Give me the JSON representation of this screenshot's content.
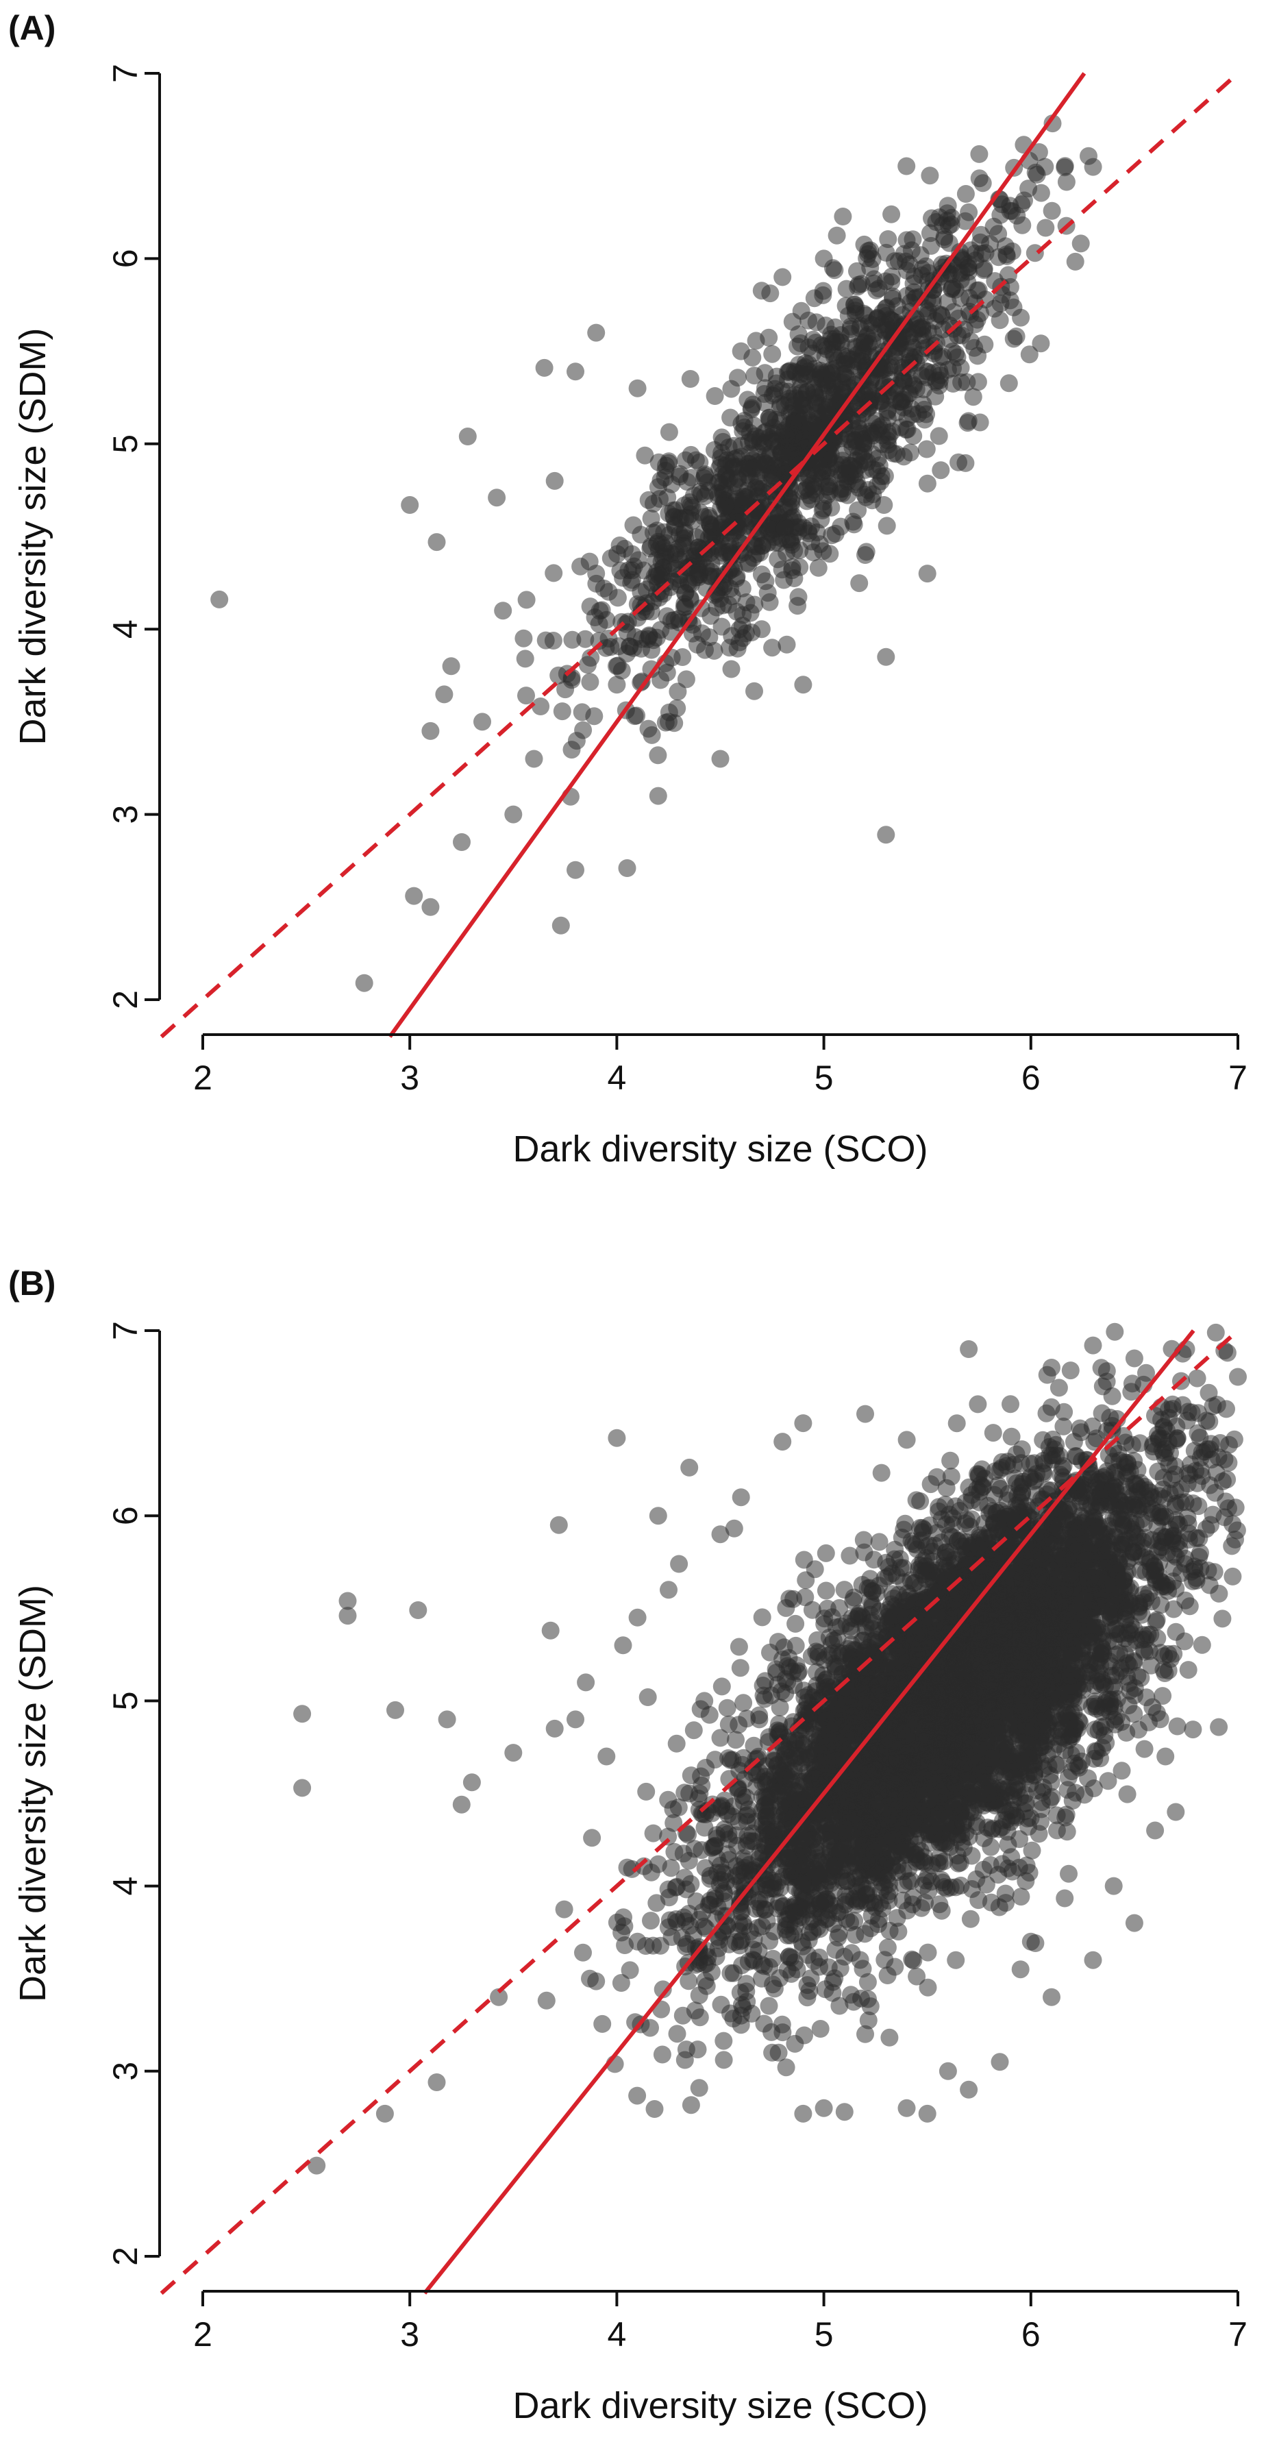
{
  "chart_data": [
    {
      "type": "scatter",
      "panel_label": "(A)",
      "xlabel": "Dark diversity size (SCO)",
      "ylabel": "Dark diversity size (SDM)",
      "xlim": [
        1.8,
        7.0
      ],
      "ylim": [
        1.8,
        7.0
      ],
      "xticks": [
        2,
        3,
        4,
        5,
        6,
        7
      ],
      "yticks": [
        2,
        3,
        4,
        5,
        6,
        7
      ],
      "point_color": "#2a2a2a",
      "line_color": "#d7222b",
      "lines": [
        {
          "style": "solid",
          "slope": 1.55,
          "intercept": -2.7
        },
        {
          "style": "dashed",
          "slope": 1.0,
          "intercept": 0.0
        }
      ],
      "cloud": {
        "n": 1500,
        "x_mean": 4.9,
        "x_sd": 0.5,
        "y_slope": 1.05,
        "y_intercept": -0.15,
        "y_sd": 0.33,
        "seed": 11
      },
      "points": [
        [
          2.08,
          4.16
        ],
        [
          2.78,
          2.09
        ],
        [
          3.0,
          4.67
        ],
        [
          3.02,
          2.56
        ],
        [
          3.1,
          2.5
        ],
        [
          3.13,
          4.47
        ],
        [
          3.28,
          5.04
        ],
        [
          3.42,
          4.71
        ],
        [
          3.65,
          5.41
        ],
        [
          3.8,
          5.39
        ],
        [
          3.6,
          3.3
        ],
        [
          3.73,
          2.4
        ],
        [
          3.8,
          2.7
        ],
        [
          3.9,
          5.6
        ],
        [
          5.3,
          2.89
        ],
        [
          4.05,
          2.71
        ],
        [
          4.5,
          3.3
        ],
        [
          5.3,
          3.85
        ],
        [
          5.7,
          6.25
        ],
        [
          5.85,
          6.32
        ],
        [
          6.02,
          6.03
        ],
        [
          5.93,
          5.58
        ],
        [
          3.5,
          3.0
        ],
        [
          3.35,
          3.5
        ],
        [
          3.2,
          3.8
        ],
        [
          3.1,
          3.45
        ],
        [
          3.45,
          4.1
        ],
        [
          3.7,
          4.8
        ],
        [
          3.55,
          3.95
        ],
        [
          3.9,
          4.3
        ],
        [
          4.0,
          3.7
        ],
        [
          4.2,
          3.1
        ],
        [
          4.3,
          4.6
        ],
        [
          4.1,
          5.3
        ],
        [
          4.6,
          5.5
        ],
        [
          4.8,
          5.9
        ],
        [
          5.0,
          6.0
        ],
        [
          5.4,
          6.1
        ],
        [
          5.6,
          5.4
        ],
        [
          5.2,
          4.4
        ],
        [
          4.9,
          3.7
        ],
        [
          4.7,
          4.0
        ],
        [
          4.4,
          4.9
        ],
        [
          3.95,
          4.05
        ],
        [
          4.25,
          3.5
        ],
        [
          5.65,
          4.9
        ],
        [
          5.5,
          4.3
        ],
        [
          4.75,
          3.9
        ]
      ]
    },
    {
      "type": "scatter",
      "panel_label": "(B)",
      "xlabel": "Dark diversity size (SCO)",
      "ylabel": "Dark diversity size (SDM)",
      "xlim": [
        1.8,
        7.0
      ],
      "ylim": [
        1.8,
        7.0
      ],
      "xticks": [
        2,
        3,
        4,
        5,
        6,
        7
      ],
      "yticks": [
        2,
        3,
        4,
        5,
        6,
        7
      ],
      "point_color": "#2a2a2a",
      "line_color": "#d7222b",
      "lines": [
        {
          "style": "solid",
          "slope": 1.4,
          "intercept": -2.5
        },
        {
          "style": "dashed",
          "slope": 1.0,
          "intercept": 0.0
        }
      ],
      "cloud": {
        "n": 6000,
        "x_mean": 5.6,
        "x_sd": 0.55,
        "y_slope": 0.85,
        "y_intercept": 0.25,
        "y_sd": 0.45,
        "seed": 23
      },
      "points": [
        [
          2.48,
          4.93
        ],
        [
          2.48,
          4.53
        ],
        [
          2.55,
          2.49
        ],
        [
          2.7,
          5.54
        ],
        [
          2.7,
          5.46
        ],
        [
          2.88,
          2.77
        ],
        [
          2.93,
          4.95
        ],
        [
          3.04,
          5.49
        ],
        [
          3.13,
          2.94
        ],
        [
          3.18,
          4.9
        ],
        [
          3.25,
          4.44
        ],
        [
          3.3,
          4.56
        ],
        [
          3.43,
          3.4
        ],
        [
          3.5,
          4.72
        ],
        [
          3.68,
          5.38
        ],
        [
          3.72,
          5.95
        ],
        [
          3.7,
          4.85
        ],
        [
          3.8,
          4.9
        ],
        [
          3.85,
          5.1
        ],
        [
          3.88,
          4.26
        ],
        [
          3.95,
          4.7
        ],
        [
          4.0,
          6.42
        ],
        [
          4.03,
          5.3
        ],
        [
          4.05,
          4.1
        ],
        [
          4.1,
          3.7
        ],
        [
          4.1,
          5.45
        ],
        [
          4.15,
          5.02
        ],
        [
          4.2,
          6.0
        ],
        [
          4.25,
          5.6
        ],
        [
          4.3,
          5.74
        ],
        [
          4.35,
          6.26
        ],
        [
          4.4,
          4.5
        ],
        [
          4.45,
          3.9
        ],
        [
          4.5,
          5.9
        ],
        [
          4.6,
          6.1
        ],
        [
          4.8,
          6.4
        ],
        [
          4.9,
          6.5
        ],
        [
          5.2,
          6.55
        ],
        [
          5.7,
          6.9
        ],
        [
          6.1,
          6.8
        ],
        [
          6.3,
          6.92
        ],
        [
          6.5,
          6.85
        ],
        [
          6.75,
          6.9
        ],
        [
          6.92,
          7.16
        ],
        [
          6.95,
          6.88
        ],
        [
          7.0,
          6.75
        ],
        [
          6.9,
          6.6
        ],
        [
          4.9,
          2.77
        ],
        [
          5.0,
          2.8
        ],
        [
          5.1,
          2.78
        ],
        [
          5.4,
          2.8
        ],
        [
          5.5,
          2.77
        ],
        [
          5.7,
          2.9
        ],
        [
          5.85,
          3.05
        ],
        [
          6.1,
          3.4
        ],
        [
          6.3,
          3.6
        ],
        [
          6.5,
          3.8
        ],
        [
          6.7,
          4.4
        ],
        [
          6.65,
          4.7
        ],
        [
          5.2,
          3.2
        ],
        [
          5.6,
          3.0
        ],
        [
          4.75,
          3.1
        ],
        [
          4.6,
          3.3
        ],
        [
          4.7,
          3.5
        ],
        [
          4.6,
          3.25
        ],
        [
          6.0,
          3.7
        ],
        [
          5.95,
          3.55
        ],
        [
          6.4,
          4.0
        ],
        [
          6.6,
          4.3
        ],
        [
          4.4,
          3.6
        ],
        [
          4.5,
          4.8
        ],
        [
          4.35,
          4.5
        ]
      ]
    }
  ]
}
